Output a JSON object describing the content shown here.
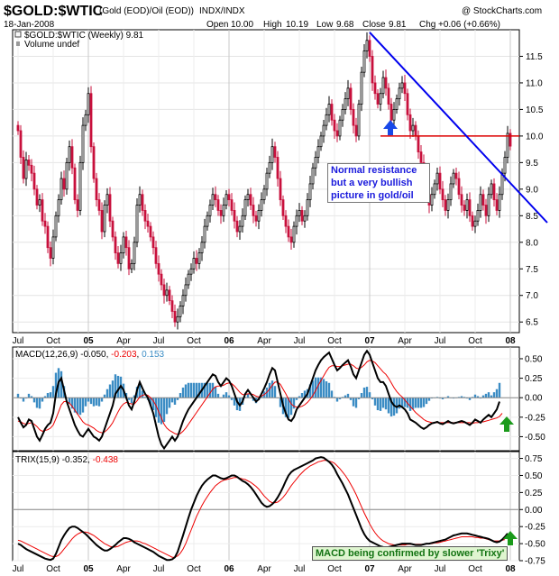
{
  "header": {
    "title": "$GOLD:$WTIC",
    "subtitle": "(Gold (EOD)/Oil (EOD))",
    "exchange": "INDX/INDX",
    "copyright": "@ StockCharts.com",
    "date": "18-Jan-2008",
    "open_label": "Open",
    "open_value": "10.00",
    "high_label": "High",
    "high_value": "10.19",
    "low_label": "Low",
    "low_value": "9.68",
    "close_label": "Close",
    "close_value": "9.81",
    "chg_label": "Chg",
    "chg_value": "+0.06 (+0.66%)"
  },
  "chart_data": [
    {
      "type": "candlestick",
      "legend": "$GOLD:$WTIC (Weekly) 9.81",
      "volume_legend": "Volume undef",
      "ylim": [
        6.3,
        12.0
      ],
      "yticks": [
        6.5,
        7.0,
        7.5,
        8.0,
        8.5,
        9.0,
        9.5,
        10.0,
        10.5,
        11.0,
        11.5
      ],
      "x_tick_labels": [
        "Jul",
        "Oct",
        "05",
        "Apr",
        "Jul",
        "Oct",
        "06",
        "Apr",
        "Jul",
        "Oct",
        "07",
        "Apr",
        "Jul",
        "Oct",
        "08"
      ],
      "x_tick_weeks": [
        0,
        13,
        26,
        39,
        52,
        65,
        78,
        91,
        104,
        117,
        130,
        143,
        156,
        169,
        182
      ],
      "closes": [
        10.1,
        9.6,
        9.2,
        9.55,
        9.45,
        9.3,
        9.0,
        8.7,
        8.8,
        8.4,
        8.3,
        7.9,
        7.7,
        8.1,
        8.5,
        8.8,
        9.2,
        9.0,
        9.5,
        9.8,
        9.4,
        8.8,
        8.6,
        9.5,
        10.2,
        10.4,
        10.8,
        9.8,
        9.2,
        8.8,
        8.6,
        8.2,
        8.7,
        8.9,
        8.4,
        8.1,
        7.8,
        7.6,
        7.8,
        8.1,
        7.9,
        7.5,
        7.6,
        8.0,
        8.7,
        8.9,
        8.6,
        8.4,
        8.3,
        8.1,
        7.9,
        7.6,
        7.4,
        7.2,
        7.0,
        7.1,
        6.9,
        6.7,
        6.5,
        6.6,
        6.8,
        7.0,
        7.2,
        7.4,
        7.5,
        7.7,
        7.6,
        7.8,
        8.0,
        8.3,
        8.5,
        8.7,
        8.9,
        8.8,
        8.6,
        8.5,
        8.7,
        8.9,
        8.8,
        8.6,
        8.4,
        8.2,
        8.3,
        8.5,
        8.8,
        8.9,
        8.7,
        8.5,
        8.4,
        8.6,
        8.8,
        9.0,
        9.3,
        9.5,
        9.8,
        9.6,
        9.2,
        8.8,
        8.5,
        8.3,
        8.1,
        8.0,
        8.3,
        8.5,
        8.6,
        8.4,
        8.5,
        8.8,
        9.1,
        9.4,
        9.6,
        9.8,
        10.0,
        10.2,
        10.4,
        10.6,
        10.3,
        10.1,
        10.0,
        10.3,
        10.5,
        10.7,
        10.9,
        10.5,
        10.2,
        10.0,
        10.6,
        11.2,
        11.6,
        11.8,
        11.5,
        11.0,
        10.8,
        10.6,
        10.8,
        11.1,
        10.9,
        10.6,
        10.3,
        10.5,
        10.7,
        10.9,
        11.0,
        10.8,
        10.4,
        10.1,
        10.2,
        10.0,
        9.7,
        9.5,
        9.2,
        8.9,
        8.7,
        8.9,
        9.1,
        9.3,
        9.0,
        8.8,
        8.6,
        8.8,
        9.1,
        9.3,
        9.2,
        8.9,
        8.7,
        8.6,
        8.8,
        8.5,
        8.3,
        8.4,
        8.6,
        8.9,
        8.7,
        8.5,
        8.9,
        9.1,
        8.8,
        8.6,
        8.9,
        9.3,
        9.6,
        10.05,
        9.81
      ],
      "resistance_level": 10.0,
      "trendline": {
        "from_week": 130,
        "from_value": 11.95,
        "to_week": 190,
        "to_value": 8.35
      },
      "annotation": "Normal resistance but a very bullish picture in gold/oil"
    },
    {
      "type": "line+histogram",
      "legend_name": "MACD(12,26,9)",
      "legend_values": [
        "-0.050",
        "-0.203",
        "0.153"
      ],
      "ylim": [
        -0.68,
        0.65
      ],
      "yticks": [
        0.5,
        0.25,
        0.0,
        -0.25,
        -0.5
      ],
      "macd": [
        -0.25,
        -0.32,
        -0.38,
        -0.35,
        -0.28,
        -0.3,
        -0.4,
        -0.5,
        -0.55,
        -0.48,
        -0.4,
        -0.35,
        -0.32,
        -0.2,
        0.05,
        0.2,
        0.25,
        0.1,
        -0.05,
        -0.15,
        -0.25,
        -0.35,
        -0.42,
        -0.48,
        -0.5,
        -0.45,
        -0.4,
        -0.45,
        -0.5,
        -0.52,
        -0.55,
        -0.5,
        -0.4,
        -0.3,
        -0.2,
        -0.1,
        0.05,
        0.1,
        0.15,
        0.1,
        0.0,
        -0.1,
        -0.15,
        -0.05,
        0.1,
        0.2,
        0.12,
        0.05,
        0.0,
        -0.1,
        -0.2,
        -0.35,
        -0.5,
        -0.6,
        -0.65,
        -0.6,
        -0.55,
        -0.5,
        -0.55,
        -0.5,
        -0.4,
        -0.3,
        -0.22,
        -0.15,
        -0.1,
        -0.05,
        0.0,
        0.05,
        0.1,
        0.15,
        0.2,
        0.25,
        0.3,
        0.28,
        0.2,
        0.15,
        0.2,
        0.25,
        0.22,
        0.15,
        0.05,
        -0.05,
        -0.1,
        -0.05,
        0.05,
        0.1,
        0.05,
        0.0,
        -0.05,
        -0.02,
        0.05,
        0.12,
        0.2,
        0.3,
        0.38,
        0.35,
        0.2,
        0.05,
        -0.1,
        -0.2,
        -0.28,
        -0.3,
        -0.25,
        -0.15,
        -0.1,
        -0.05,
        0.0,
        0.05,
        0.15,
        0.25,
        0.35,
        0.42,
        0.48,
        0.52,
        0.55,
        0.58,
        0.5,
        0.42,
        0.35,
        0.38,
        0.42,
        0.45,
        0.48,
        0.4,
        0.3,
        0.25,
        0.35,
        0.45,
        0.55,
        0.6,
        0.55,
        0.45,
        0.35,
        0.25,
        0.2,
        0.2,
        0.15,
        0.05,
        -0.05,
        -0.1,
        -0.12,
        -0.1,
        -0.12,
        -0.15,
        -0.2,
        -0.28,
        -0.3,
        -0.32,
        -0.35,
        -0.38,
        -0.4,
        -0.38,
        -0.35,
        -0.33,
        -0.32,
        -0.31,
        -0.33,
        -0.34,
        -0.32,
        -0.3,
        -0.32,
        -0.33,
        -0.32,
        -0.31,
        -0.3,
        -0.31,
        -0.33,
        -0.35,
        -0.32,
        -0.28,
        -0.3,
        -0.32,
        -0.28,
        -0.25,
        -0.22,
        -0.25,
        -0.2,
        -0.15,
        -0.05
      ],
      "signal": [
        -0.3,
        -0.31,
        -0.33,
        -0.34,
        -0.33,
        -0.32,
        -0.34,
        -0.37,
        -0.41,
        -0.43,
        -0.42,
        -0.41,
        -0.39,
        -0.35,
        -0.27,
        -0.18,
        -0.09,
        -0.05,
        -0.05,
        -0.07,
        -0.11,
        -0.16,
        -0.21,
        -0.26,
        -0.31,
        -0.34,
        -0.35,
        -0.37,
        -0.39,
        -0.42,
        -0.44,
        -0.45,
        -0.44,
        -0.41,
        -0.37,
        -0.32,
        -0.25,
        -0.18,
        -0.12,
        -0.08,
        -0.06,
        -0.07,
        -0.08,
        -0.08,
        -0.04,
        0.01,
        0.03,
        0.04,
        0.03,
        0.0,
        -0.04,
        -0.1,
        -0.18,
        -0.26,
        -0.34,
        -0.39,
        -0.42,
        -0.44,
        -0.46,
        -0.47,
        -0.46,
        -0.43,
        -0.39,
        -0.34,
        -0.29,
        -0.24,
        -0.19,
        -0.14,
        -0.09,
        -0.04,
        0.01,
        0.06,
        0.11,
        0.14,
        0.15,
        0.15,
        0.16,
        0.18,
        0.19,
        0.18,
        0.15,
        0.11,
        0.07,
        0.04,
        0.04,
        0.05,
        0.05,
        0.04,
        0.02,
        0.01,
        0.02,
        0.04,
        0.07,
        0.11,
        0.16,
        0.2,
        0.2,
        0.17,
        0.11,
        0.05,
        -0.02,
        -0.08,
        -0.11,
        -0.12,
        -0.12,
        -0.11,
        -0.09,
        -0.06,
        -0.02,
        0.03,
        0.09,
        0.16,
        0.22,
        0.28,
        0.34,
        0.39,
        0.41,
        0.41,
        0.4,
        0.4,
        0.41,
        0.42,
        0.43,
        0.43,
        0.41,
        0.38,
        0.37,
        0.39,
        0.42,
        0.46,
        0.48,
        0.47,
        0.45,
        0.41,
        0.37,
        0.33,
        0.3,
        0.25,
        0.19,
        0.13,
        0.08,
        0.04,
        0.01,
        -0.03,
        -0.07,
        -0.11,
        -0.15,
        -0.19,
        -0.22,
        -0.25,
        -0.28,
        -0.3,
        -0.31,
        -0.32,
        -0.32,
        -0.32,
        -0.32,
        -0.32,
        -0.32,
        -0.32,
        -0.32,
        -0.32,
        -0.32,
        -0.32,
        -0.32,
        -0.32,
        -0.32,
        -0.32,
        -0.33,
        -0.32,
        -0.32,
        -0.31,
        -0.31,
        -0.3,
        -0.29,
        -0.28,
        -0.27,
        -0.26,
        -0.24,
        -0.2
      ]
    },
    {
      "type": "line",
      "legend_name": "TRIX(15,9)",
      "legend_values": [
        "-0.352",
        "-0.438"
      ],
      "ylim": [
        -0.75,
        0.85
      ],
      "yticks": [
        0.75,
        0.5,
        0.25,
        0.0,
        -0.25,
        -0.5,
        -0.75
      ],
      "trix": [
        -0.5,
        -0.52,
        -0.55,
        -0.58,
        -0.6,
        -0.62,
        -0.64,
        -0.66,
        -0.68,
        -0.7,
        -0.72,
        -0.73,
        -0.74,
        -0.72,
        -0.65,
        -0.55,
        -0.45,
        -0.38,
        -0.32,
        -0.27,
        -0.25,
        -0.25,
        -0.27,
        -0.3,
        -0.33,
        -0.36,
        -0.4,
        -0.44,
        -0.48,
        -0.52,
        -0.55,
        -0.58,
        -0.6,
        -0.6,
        -0.58,
        -0.55,
        -0.52,
        -0.48,
        -0.45,
        -0.42,
        -0.42,
        -0.43,
        -0.45,
        -0.48,
        -0.5,
        -0.52,
        -0.54,
        -0.56,
        -0.58,
        -0.6,
        -0.62,
        -0.65,
        -0.68,
        -0.7,
        -0.72,
        -0.74,
        -0.74,
        -0.73,
        -0.7,
        -0.62,
        -0.5,
        -0.38,
        -0.25,
        -0.12,
        0.0,
        0.1,
        0.2,
        0.28,
        0.35,
        0.4,
        0.44,
        0.47,
        0.5,
        0.5,
        0.48,
        0.46,
        0.45,
        0.46,
        0.48,
        0.5,
        0.5,
        0.48,
        0.45,
        0.42,
        0.4,
        0.37,
        0.33,
        0.28,
        0.22,
        0.16,
        0.1,
        0.06,
        0.04,
        0.05,
        0.08,
        0.12,
        0.18,
        0.25,
        0.33,
        0.42,
        0.5,
        0.55,
        0.58,
        0.6,
        0.62,
        0.64,
        0.66,
        0.68,
        0.7,
        0.72,
        0.75,
        0.76,
        0.77,
        0.76,
        0.73,
        0.7,
        0.66,
        0.6,
        0.52,
        0.45,
        0.38,
        0.3,
        0.22,
        0.12,
        0.02,
        -0.08,
        -0.18,
        -0.28,
        -0.36,
        -0.42,
        -0.46,
        -0.48,
        -0.5,
        -0.52,
        -0.54,
        -0.55,
        -0.56,
        -0.55,
        -0.54,
        -0.53,
        -0.52,
        -0.51,
        -0.5,
        -0.5,
        -0.5,
        -0.5,
        -0.51,
        -0.52,
        -0.52,
        -0.52,
        -0.51,
        -0.5,
        -0.5,
        -0.49,
        -0.48,
        -0.47,
        -0.46,
        -0.45,
        -0.44,
        -0.42,
        -0.4,
        -0.38,
        -0.37,
        -0.36,
        -0.35,
        -0.35,
        -0.35,
        -0.36,
        -0.37,
        -0.38,
        -0.39,
        -0.4,
        -0.41,
        -0.42,
        -0.43,
        -0.45,
        -0.47,
        -0.48,
        -0.47,
        -0.44,
        -0.4,
        -0.35
      ],
      "signal": [
        -0.45,
        -0.46,
        -0.48,
        -0.5,
        -0.52,
        -0.54,
        -0.56,
        -0.58,
        -0.6,
        -0.62,
        -0.64,
        -0.66,
        -0.68,
        -0.69,
        -0.69,
        -0.67,
        -0.63,
        -0.58,
        -0.53,
        -0.48,
        -0.43,
        -0.39,
        -0.36,
        -0.34,
        -0.33,
        -0.33,
        -0.34,
        -0.36,
        -0.38,
        -0.41,
        -0.44,
        -0.47,
        -0.5,
        -0.52,
        -0.54,
        -0.55,
        -0.55,
        -0.54,
        -0.52,
        -0.5,
        -0.48,
        -0.47,
        -0.46,
        -0.46,
        -0.46,
        -0.47,
        -0.49,
        -0.5,
        -0.52,
        -0.54,
        -0.56,
        -0.58,
        -0.6,
        -0.62,
        -0.64,
        -0.66,
        -0.68,
        -0.7,
        -0.7,
        -0.68,
        -0.64,
        -0.58,
        -0.5,
        -0.4,
        -0.3,
        -0.2,
        -0.1,
        -0.02,
        0.06,
        0.13,
        0.19,
        0.25,
        0.3,
        0.35,
        0.38,
        0.41,
        0.43,
        0.44,
        0.45,
        0.46,
        0.47,
        0.47,
        0.46,
        0.45,
        0.44,
        0.42,
        0.4,
        0.37,
        0.34,
        0.3,
        0.25,
        0.2,
        0.16,
        0.12,
        0.1,
        0.1,
        0.11,
        0.14,
        0.18,
        0.23,
        0.29,
        0.35,
        0.4,
        0.45,
        0.5,
        0.54,
        0.58,
        0.61,
        0.64,
        0.66,
        0.68,
        0.7,
        0.71,
        0.72,
        0.72,
        0.71,
        0.7,
        0.68,
        0.64,
        0.6,
        0.55,
        0.5,
        0.44,
        0.37,
        0.3,
        0.22,
        0.13,
        0.04,
        -0.05,
        -0.13,
        -0.21,
        -0.28,
        -0.34,
        -0.39,
        -0.43,
        -0.46,
        -0.48,
        -0.5,
        -0.51,
        -0.52,
        -0.52,
        -0.52,
        -0.52,
        -0.52,
        -0.51,
        -0.51,
        -0.51,
        -0.51,
        -0.51,
        -0.51,
        -0.51,
        -0.5,
        -0.5,
        -0.5,
        -0.49,
        -0.49,
        -0.48,
        -0.47,
        -0.46,
        -0.45,
        -0.44,
        -0.43,
        -0.42,
        -0.41,
        -0.4,
        -0.4,
        -0.4,
        -0.4,
        -0.4,
        -0.41,
        -0.41,
        -0.42,
        -0.42,
        -0.43,
        -0.44,
        -0.45,
        -0.46,
        -0.46,
        -0.46,
        -0.45,
        -0.44
      ],
      "annotation": "MACD being confirmed by slower 'Trixy'"
    }
  ],
  "colors": {
    "up_candle": "#000000",
    "down_candle": "#c8103c",
    "trendline": "#0000ee",
    "resistance": "#dd0000",
    "macd_line": "#000000",
    "macd_signal": "#ee0000",
    "macd_hist": "#3b8cc4",
    "arrow_blue": "#1848e8",
    "arrow_green": "#1a9a1a",
    "annotation_text": "#1a1adc",
    "annotation_trix_text": "#127312",
    "annotation_trix_bg": "#dff5d0"
  }
}
